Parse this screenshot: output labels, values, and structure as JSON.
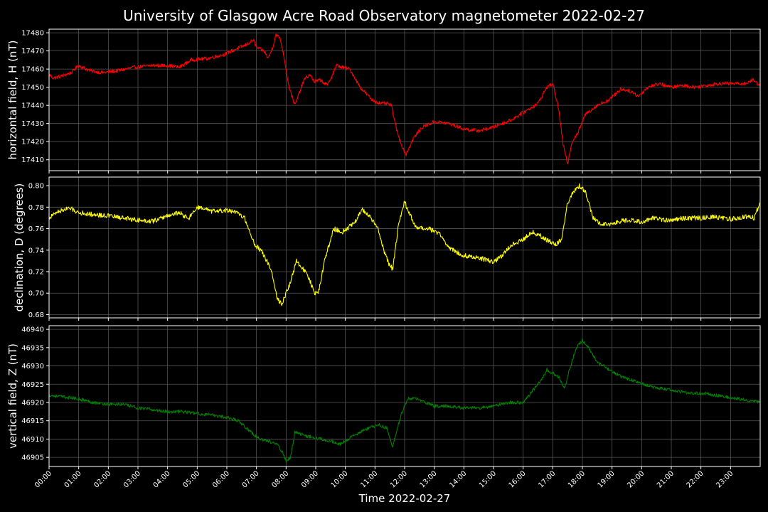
{
  "title": "University of Glasgow Acre Road Observatory magnetometer 2022-02-27",
  "colors": {
    "background": "#000000",
    "grid": "#555555",
    "H": "#ff0000",
    "D": "#ffff00",
    "Z": "#008000"
  },
  "chart_data": {
    "type": "line",
    "title": "University of Glasgow Acre Road Observatory magnetometer 2022-02-27",
    "xlabel": "Time 2022-02-27",
    "xlim": [
      "00:00",
      "24:00"
    ],
    "x_ticks": [
      "00:00",
      "01:00",
      "02:00",
      "03:00",
      "04:00",
      "05:00",
      "06:00",
      "07:00",
      "08:00",
      "09:00",
      "10:00",
      "11:00",
      "12:00",
      "13:00",
      "14:00",
      "15:00",
      "16:00",
      "17:00",
      "18:00",
      "19:00",
      "20:00",
      "21:00",
      "22:00",
      "23:00"
    ],
    "grid": true,
    "panels": [
      {
        "key": "H",
        "ylabel": "horizontal field, H (nT)",
        "color": "#ff0000",
        "ylim": [
          17404,
          17482
        ],
        "y_ticks": [
          17410,
          17420,
          17430,
          17440,
          17450,
          17460,
          17470,
          17480
        ],
        "noise": 1.0,
        "x": [
          0,
          0.15,
          0.4,
          0.75,
          1.0,
          1.4,
          1.8,
          2.3,
          2.9,
          3.5,
          4.0,
          4.4,
          4.8,
          5.4,
          5.9,
          6.3,
          6.6,
          6.9,
          7.0,
          7.1,
          7.25,
          7.4,
          7.55,
          7.65,
          7.8,
          7.95,
          8.1,
          8.3,
          8.6,
          8.8,
          8.95,
          9.15,
          9.4,
          9.7,
          9.9,
          10.15,
          10.5,
          10.9,
          11.2,
          11.4,
          11.55,
          11.75,
          11.95,
          12.05,
          12.3,
          12.6,
          13.0,
          13.5,
          14.0,
          14.5,
          15.0,
          15.6,
          16.1,
          16.5,
          16.8,
          17.0,
          17.2,
          17.35,
          17.5,
          17.65,
          17.85,
          18.1,
          18.5,
          18.9,
          19.3,
          19.6,
          19.9,
          20.2,
          20.6,
          21.0,
          21.4,
          21.8,
          22.2,
          22.6,
          22.9,
          23.2,
          23.5,
          23.75,
          24.0
        ],
        "y": [
          17457,
          17455,
          17456,
          17458,
          17462,
          17459,
          17458,
          17459,
          17461,
          17462,
          17462,
          17461,
          17465,
          17466,
          17468,
          17471,
          17473,
          17476,
          17472,
          17471,
          17470,
          17466,
          17472,
          17479,
          17477,
          17465,
          17450,
          17440,
          17454,
          17457,
          17453,
          17454,
          17451,
          17462,
          17461,
          17460,
          17450,
          17443,
          17441,
          17441,
          17440,
          17425,
          17416,
          17413,
          17422,
          17428,
          17431,
          17430,
          17427,
          17426,
          17428,
          17432,
          17437,
          17441,
          17450,
          17452,
          17438,
          17418,
          17408,
          17420,
          17425,
          17435,
          17440,
          17443,
          17449,
          17448,
          17445,
          17450,
          17452,
          17450,
          17451,
          17450,
          17451,
          17452,
          17452,
          17452,
          17452,
          17454,
          17451
        ]
      },
      {
        "key": "D",
        "ylabel": "declination, D (degrees)",
        "color": "#ffff00",
        "ylim": [
          0.677,
          0.808
        ],
        "y_ticks": [
          0.68,
          0.7,
          0.72,
          0.74,
          0.76,
          0.78,
          0.8
        ],
        "noise": 0.0022,
        "x": [
          0,
          0.3,
          0.7,
          1.0,
          1.5,
          2.0,
          2.5,
          3.0,
          3.5,
          4.0,
          4.4,
          4.7,
          5.0,
          5.5,
          6.0,
          6.4,
          6.6,
          6.75,
          6.95,
          7.15,
          7.35,
          7.5,
          7.7,
          7.85,
          8.0,
          8.15,
          8.35,
          8.6,
          8.8,
          8.95,
          9.1,
          9.3,
          9.6,
          9.9,
          10.3,
          10.55,
          10.8,
          11.1,
          11.3,
          11.45,
          11.6,
          11.8,
          12.0,
          12.15,
          12.4,
          12.8,
          13.2,
          13.5,
          14.0,
          14.5,
          15.0,
          15.3,
          15.6,
          16.0,
          16.3,
          16.6,
          16.9,
          17.1,
          17.3,
          17.5,
          17.7,
          17.9,
          18.1,
          18.35,
          18.6,
          18.9,
          19.3,
          19.7,
          20.0,
          20.4,
          20.8,
          21.2,
          21.6,
          22.0,
          22.5,
          23.0,
          23.5,
          23.8,
          24.0
        ],
        "y": [
          0.77,
          0.776,
          0.779,
          0.775,
          0.773,
          0.772,
          0.77,
          0.768,
          0.767,
          0.772,
          0.775,
          0.769,
          0.78,
          0.776,
          0.777,
          0.774,
          0.77,
          0.758,
          0.745,
          0.74,
          0.73,
          0.722,
          0.695,
          0.69,
          0.7,
          0.71,
          0.73,
          0.722,
          0.712,
          0.7,
          0.702,
          0.73,
          0.76,
          0.757,
          0.765,
          0.778,
          0.772,
          0.76,
          0.74,
          0.728,
          0.722,
          0.765,
          0.785,
          0.775,
          0.76,
          0.76,
          0.755,
          0.742,
          0.735,
          0.733,
          0.729,
          0.735,
          0.745,
          0.75,
          0.757,
          0.753,
          0.748,
          0.745,
          0.75,
          0.784,
          0.794,
          0.8,
          0.795,
          0.77,
          0.765,
          0.764,
          0.767,
          0.768,
          0.766,
          0.77,
          0.768,
          0.769,
          0.77,
          0.77,
          0.771,
          0.769,
          0.771,
          0.77,
          0.784
        ]
      },
      {
        "key": "Z",
        "ylabel": "vertical field, Z (nT)",
        "color": "#008000",
        "ylim": [
          46902.5,
          46941
        ],
        "y_ticks": [
          46905,
          46910,
          46915,
          46920,
          46925,
          46930,
          46935,
          46940
        ],
        "noise": 0.45,
        "x": [
          0,
          0.5,
          1.0,
          1.5,
          2.0,
          2.5,
          3.0,
          3.5,
          4.0,
          4.5,
          5.0,
          5.5,
          6.0,
          6.4,
          6.8,
          7.1,
          7.4,
          7.7,
          7.9,
          8.0,
          8.15,
          8.3,
          8.6,
          8.9,
          9.2,
          9.5,
          9.8,
          10.1,
          10.4,
          10.8,
          11.1,
          11.4,
          11.5,
          11.6,
          11.75,
          11.9,
          12.1,
          12.4,
          12.7,
          13.0,
          13.5,
          14.0,
          14.5,
          15.0,
          15.5,
          16.0,
          16.3,
          16.6,
          16.8,
          17.0,
          17.2,
          17.4,
          17.6,
          17.8,
          18.0,
          18.2,
          18.5,
          18.9,
          19.3,
          19.7,
          20.1,
          20.5,
          20.9,
          21.3,
          21.7,
          22.1,
          22.5,
          22.9,
          23.3,
          23.7,
          24.0
        ],
        "y": [
          46922,
          46921.5,
          46921,
          46920,
          46919.5,
          46919.5,
          46918.5,
          46918,
          46917.5,
          46917.5,
          46917,
          46916.5,
          46916,
          46915,
          46912,
          46910,
          46909.5,
          46908.5,
          46906,
          46904,
          46905,
          46912,
          46911,
          46910.5,
          46910,
          46909.5,
          46908.5,
          46910,
          46911.5,
          46913,
          46914,
          46913,
          46910,
          46908,
          46913,
          46917,
          46921,
          46921,
          46920,
          46919,
          46919,
          46918.5,
          46918.5,
          46919,
          46920,
          46920,
          46923,
          46926,
          46929,
          46928,
          46927,
          46924,
          46930,
          46935,
          46937,
          46935,
          46931,
          46929,
          46927,
          46926,
          46925,
          46924,
          46923.5,
          46923,
          46922.5,
          46922.5,
          46922,
          46921.5,
          46921,
          46920.5,
          46920
        ]
      }
    ]
  }
}
